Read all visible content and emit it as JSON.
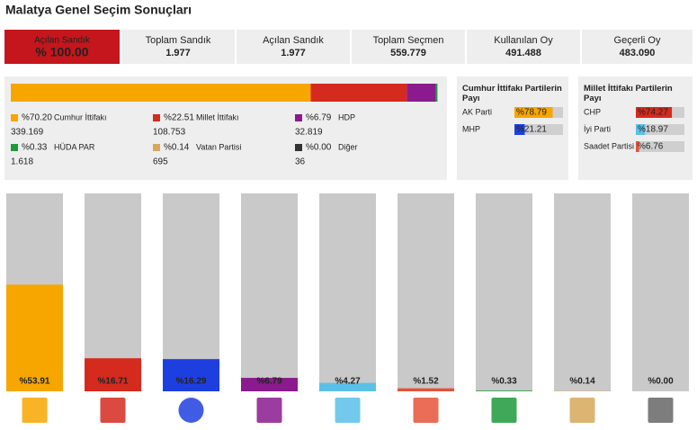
{
  "title": "Malatya Genel Seçim Sonuçları",
  "stats": [
    {
      "label": "Açılan Sandık",
      "value": "% 100.00"
    },
    {
      "label": "Toplam Sandık",
      "value": "1.977"
    },
    {
      "label": "Açılan Sandık",
      "value": "1.977"
    },
    {
      "label": "Toplam Seçmen",
      "value": "559.779"
    },
    {
      "label": "Kullanılan Oy",
      "value": "491.488"
    },
    {
      "label": "Geçerli Oy",
      "value": "483.090"
    }
  ],
  "chart_data": [
    {
      "type": "stacked-bar",
      "xlim": [
        0,
        100
      ],
      "series": [
        {
          "name": "Cumhur İttifakı",
          "color": "#f7a600",
          "values": [
            70.2
          ],
          "value_labels": [
            "%70.20"
          ],
          "counts": [
            "339.169"
          ]
        },
        {
          "name": "Millet İttifakı",
          "color": "#d52a1e",
          "values": [
            22.51
          ],
          "value_labels": [
            "%22.51"
          ],
          "counts": [
            "108.753"
          ]
        },
        {
          "name": "HDP",
          "color": "#8a1a8e",
          "values": [
            6.79
          ],
          "value_labels": [
            "%6.79"
          ],
          "counts": [
            "32.819"
          ]
        },
        {
          "name": "HÜDA PAR",
          "color": "#1e9a3c",
          "values": [
            0.33
          ],
          "value_labels": [
            "%0.33"
          ],
          "counts": [
            "1.618"
          ]
        },
        {
          "name": "Vatan Partisi",
          "color": "#d6a85a",
          "values": [
            0.14
          ],
          "value_labels": [
            "%0.14"
          ],
          "counts": [
            "695"
          ]
        },
        {
          "name": "Diğer",
          "color": "#333333",
          "values": [
            0.0
          ],
          "value_labels": [
            "%0.00"
          ],
          "counts": [
            "36"
          ]
        }
      ]
    },
    {
      "type": "hbar",
      "title": "Cumhur İttifakı Partilerin Payı",
      "xlim": [
        0,
        100
      ],
      "categories": [
        "AK Parti",
        "MHP"
      ],
      "values": [
        78.79,
        21.21
      ],
      "value_labels": [
        "%78.79",
        "%21.21"
      ],
      "colors": [
        "#f7a600",
        "#1e3fe0"
      ]
    },
    {
      "type": "hbar",
      "title": "Millet İttifakı Partilerin Payı",
      "xlim": [
        0,
        100
      ],
      "categories": [
        "CHP",
        "İyi Parti",
        "Saadet Partisi"
      ],
      "values": [
        74.27,
        18.97,
        6.76
      ],
      "value_labels": [
        "%74.27",
        "%18.97",
        "%6.76"
      ],
      "colors": [
        "#d52a1e",
        "#5bc0e8",
        "#e5533a"
      ]
    },
    {
      "type": "bar",
      "ylim": [
        0,
        100
      ],
      "values": [
        53.91,
        16.71,
        16.29,
        6.79,
        4.27,
        1.52,
        0.33,
        0.14,
        0.0
      ],
      "value_labels": [
        "%53.91",
        "%16.71",
        "%16.29",
        "%6.79",
        "%4.27",
        "%1.52",
        "%0.33",
        "%0.14",
        "%0.00"
      ],
      "colors": [
        "#f7a600",
        "#d52a1e",
        "#1e3fe0",
        "#8a1a8e",
        "#5bc0e8",
        "#e5533a",
        "#1e9a3c",
        "#d6a85a",
        "#666666"
      ]
    }
  ]
}
